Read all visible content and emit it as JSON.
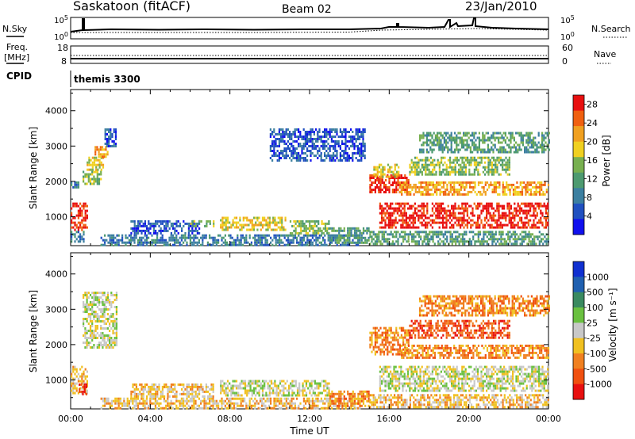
{
  "header": {
    "station": "Saskatoon (fitACF)",
    "beam": "Beam 02",
    "date": "23/Jan/2010"
  },
  "noise_panel": {
    "left_label": "N.Sky",
    "right_label": "N.Search",
    "tick_top": "10^5",
    "tick_bottom": "10^0"
  },
  "freq_panel": {
    "label_line1": "Freq.",
    "label_line2": "[MHz]",
    "right_label": "Nave",
    "left_ticks": [
      "18",
      "8"
    ],
    "right_ticks": [
      "60",
      "0"
    ]
  },
  "cpid": {
    "label": "CPID",
    "value": "themis 3300"
  },
  "colors": {
    "power_scale": [
      "#1010ee",
      "#2050c0",
      "#3c7fa0",
      "#4d9a70",
      "#78b050",
      "#f0d020",
      "#f0a020",
      "#f06010",
      "#e81010"
    ],
    "velocity_scale": [
      "#1030d0",
      "#2060b0",
      "#3a8a60",
      "#6ac040",
      "#c8c8c8",
      "#f0c020",
      "#f08020",
      "#f05010",
      "#e81010"
    ]
  },
  "chart_data": [
    {
      "type": "heatmap",
      "name": "power",
      "xlabel": "",
      "ylabel": "Slant Range [km]",
      "xlim": [
        0,
        24
      ],
      "ylim": [
        180,
        4600
      ],
      "y_ticks": [
        "1000",
        "2000",
        "3000",
        "4000"
      ],
      "y_tick_values": [
        1000,
        2000,
        3000,
        4000
      ],
      "x_tick_values": [
        0,
        4,
        8,
        12,
        16,
        20,
        24
      ],
      "colorbar": {
        "label": "Power [dB]",
        "ticks": [
          "4",
          "8",
          "12",
          "16",
          "20",
          "24",
          "28"
        ],
        "range": [
          0,
          30
        ]
      },
      "bands": [
        {
          "t": [
            0.0,
            0.8
          ],
          "r": [
            600,
            1400
          ],
          "level": 8
        },
        {
          "t": [
            0.0,
            0.4
          ],
          "r": [
            1850,
            2000
          ],
          "level": 2
        },
        {
          "t": [
            0.0,
            0.7
          ],
          "r": [
            300,
            600
          ],
          "level": 2
        },
        {
          "t": [
            0.6,
            1.5
          ],
          "r": [
            1900,
            2300
          ],
          "level": 4
        },
        {
          "t": [
            0.8,
            1.6
          ],
          "r": [
            2300,
            2700
          ],
          "level": 5
        },
        {
          "t": [
            1.2,
            1.9
          ],
          "r": [
            2700,
            3000
          ],
          "level": 6
        },
        {
          "t": [
            1.7,
            2.3
          ],
          "r": [
            3000,
            3500
          ],
          "level": 1
        },
        {
          "t": [
            1.5,
            14.5
          ],
          "r": [
            220,
            500
          ],
          "level": 2
        },
        {
          "t": [
            3.0,
            6.5
          ],
          "r": [
            500,
            900
          ],
          "level": 1
        },
        {
          "t": [
            6.0,
            7.2
          ],
          "r": [
            700,
            900
          ],
          "level": 4
        },
        {
          "t": [
            7.5,
            10.8
          ],
          "r": [
            600,
            1000
          ],
          "level": 5
        },
        {
          "t": [
            11.0,
            13.0
          ],
          "r": [
            550,
            900
          ],
          "level": 4
        },
        {
          "t": [
            13.0,
            15.0
          ],
          "r": [
            250,
            700
          ],
          "level": 3
        },
        {
          "t": [
            10.0,
            14.8
          ],
          "r": [
            2600,
            3500
          ],
          "level": 1
        },
        {
          "t": [
            15.0,
            17.0
          ],
          "r": [
            1700,
            2200
          ],
          "level": 8
        },
        {
          "t": [
            15.2,
            16.5
          ],
          "r": [
            2100,
            2500
          ],
          "level": 5
        },
        {
          "t": [
            15.5,
            24.0
          ],
          "r": [
            700,
            1400
          ],
          "level": 8
        },
        {
          "t": [
            16.5,
            24.0
          ],
          "r": [
            1600,
            2000
          ],
          "level": 6
        },
        {
          "t": [
            17.0,
            22.0
          ],
          "r": [
            2200,
            2700
          ],
          "level": 4
        },
        {
          "t": [
            17.5,
            24.0
          ],
          "r": [
            2800,
            3400
          ],
          "level": 3
        },
        {
          "t": [
            15.0,
            24.0
          ],
          "r": [
            220,
            600
          ],
          "level": 3
        }
      ]
    },
    {
      "type": "heatmap",
      "name": "velocity",
      "xlabel": "Time UT",
      "ylabel": "Slant Range [km]",
      "xlim": [
        0,
        24
      ],
      "ylim": [
        180,
        4600
      ],
      "x_ticks": [
        "00:00",
        "04:00",
        "08:00",
        "12:00",
        "16:00",
        "20:00",
        "00:00"
      ],
      "x_tick_values": [
        0,
        4,
        8,
        12,
        16,
        20,
        24
      ],
      "y_ticks": [
        "1000",
        "2000",
        "3000",
        "4000"
      ],
      "y_tick_values": [
        1000,
        2000,
        3000,
        4000
      ],
      "colorbar": {
        "label": "Velocity [m s⁻¹]",
        "ticks": [
          "1000",
          "500",
          "100",
          "25",
          "-25",
          "-100",
          "-500",
          "-1000"
        ]
      },
      "bands": [
        {
          "t": [
            0.0,
            0.8
          ],
          "r": [
            600,
            1400
          ],
          "level": 5
        },
        {
          "t": [
            0.4,
            0.8
          ],
          "r": [
            600,
            900
          ],
          "level": 8
        },
        {
          "t": [
            0.6,
            2.3
          ],
          "r": [
            1900,
            3500
          ],
          "level": 4
        },
        {
          "t": [
            1.5,
            14.5
          ],
          "r": [
            220,
            500
          ],
          "level": 5
        },
        {
          "t": [
            3.0,
            7.2
          ],
          "r": [
            500,
            900
          ],
          "level": 5
        },
        {
          "t": [
            7.5,
            13.0
          ],
          "r": [
            550,
            1000
          ],
          "level": 4
        },
        {
          "t": [
            13.0,
            15.0
          ],
          "r": [
            250,
            700
          ],
          "level": 6
        },
        {
          "t": [
            15.0,
            17.0
          ],
          "r": [
            1700,
            2500
          ],
          "level": 6
        },
        {
          "t": [
            15.5,
            24.0
          ],
          "r": [
            700,
            1400
          ],
          "level": 4
        },
        {
          "t": [
            16.5,
            24.0
          ],
          "r": [
            1600,
            2000
          ],
          "level": 6
        },
        {
          "t": [
            17.0,
            22.0
          ],
          "r": [
            2200,
            2700
          ],
          "level": 7
        },
        {
          "t": [
            17.5,
            24.0
          ],
          "r": [
            2800,
            3400
          ],
          "level": 6
        },
        {
          "t": [
            15.0,
            24.0
          ],
          "r": [
            220,
            600
          ],
          "level": 5
        }
      ]
    }
  ]
}
